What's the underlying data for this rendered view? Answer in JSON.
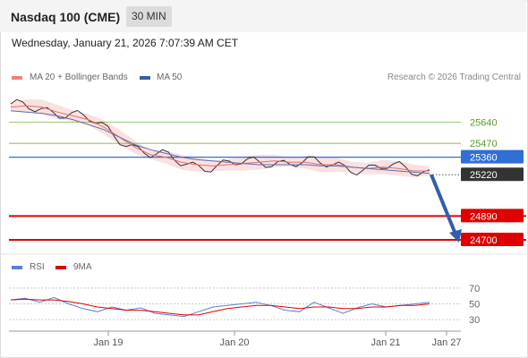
{
  "header": {
    "title": "Nasdaq 100 (CME)",
    "timeframe": "30 MIN",
    "datetime": "Wednesday, January 21, 2026 7:07:39 AM CET"
  },
  "legend": {
    "ma20_label": "MA 20 + Bollinger Bands",
    "ma20_color": "#f08080",
    "ma50_label": "MA 50",
    "ma50_color": "#3a5fa0",
    "credit": "Research © 2026 Trading Central"
  },
  "rsi_legend": {
    "rsi_label": "RSI",
    "rsi_color": "#5b7fd0",
    "ma_label": "9MA",
    "ma_color": "#e00000"
  },
  "chart_data": [
    {
      "type": "line",
      "title": "Nasdaq 100 (CME)",
      "xlabels": [
        "Jan 19",
        "Jan 20",
        "Jan 21",
        "Jan 27"
      ],
      "ylim": [
        24600,
        25900
      ],
      "levels": [
        {
          "value": "25640",
          "kind": "resistance",
          "color": "#7ab648"
        },
        {
          "value": "25470",
          "kind": "resistance",
          "color": "#7ab648"
        },
        {
          "value": "25360",
          "kind": "pivot",
          "color": "#2f6fd6"
        },
        {
          "value": "25220",
          "kind": "last",
          "color": "#333333"
        },
        {
          "value": "24890",
          "kind": "support",
          "color": "#e00000"
        },
        {
          "value": "24700",
          "kind": "support",
          "color": "#e00000"
        }
      ],
      "series": [
        {
          "name": "MA 20 + Bollinger Bands",
          "values": [
            25760,
            25770,
            25760,
            25720,
            25690,
            25660,
            25600,
            25520,
            25440,
            25380,
            25360,
            25320,
            25300,
            25290,
            25300,
            25310,
            25320,
            25330,
            25320,
            25320,
            25300,
            25300,
            25280,
            25270,
            25280,
            25270,
            25250,
            25250
          ]
        },
        {
          "name": "MA 50",
          "values": [
            25730,
            25720,
            25710,
            25690,
            25660,
            25620,
            25580,
            25520,
            25460,
            25420,
            25390,
            25360,
            25340,
            25330,
            25320,
            25310,
            25300,
            25300,
            25300,
            25300,
            25290,
            25290,
            25280,
            25270,
            25260,
            25250,
            25240,
            25230
          ]
        }
      ],
      "forecast": {
        "from": 25220,
        "to": 24700
      }
    },
    {
      "type": "line",
      "title": "RSI",
      "ylim": [
        20,
        80
      ],
      "yticks": [
        "70",
        "50",
        "30"
      ],
      "series": [
        {
          "name": "RSI",
          "values": [
            55,
            57,
            52,
            58,
            50,
            44,
            40,
            46,
            42,
            45,
            38,
            36,
            34,
            40,
            46,
            48,
            50,
            52,
            48,
            42,
            40,
            52,
            45,
            38,
            45,
            50,
            46,
            48,
            50,
            52
          ]
        },
        {
          "name": "9MA",
          "values": [
            55,
            56,
            55,
            55,
            53,
            50,
            46,
            44,
            42,
            42,
            40,
            38,
            36,
            36,
            40,
            44,
            46,
            48,
            48,
            46,
            44,
            46,
            46,
            44,
            44,
            46,
            46,
            48,
            48,
            50
          ]
        }
      ]
    }
  ]
}
